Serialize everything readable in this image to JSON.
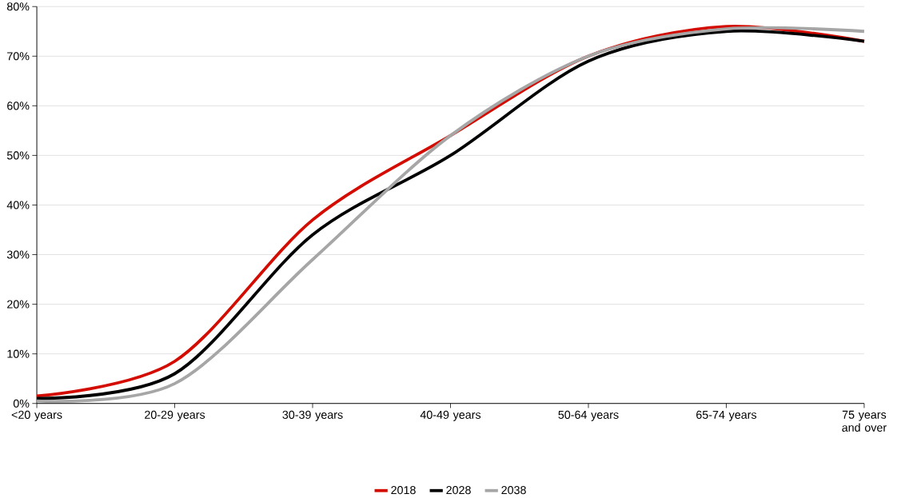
{
  "chart_data": {
    "type": "line",
    "categories": [
      "<20 years",
      "20-29 years",
      "30-39 years",
      "40-49 years",
      "50-64 years",
      "65-74 years",
      "75 years and over"
    ],
    "series": [
      {
        "name": "2018",
        "color": "#d40c00",
        "values": [
          1.5,
          8.5,
          37,
          54,
          70,
          76,
          73
        ]
      },
      {
        "name": "2028",
        "color": "#000000",
        "values": [
          1,
          6,
          34,
          50,
          69,
          75,
          73
        ]
      },
      {
        "name": "2038",
        "color": "#a6a6a6",
        "values": [
          0.5,
          4,
          29,
          54,
          70,
          75.5,
          75
        ]
      }
    ],
    "ylim": [
      0,
      80
    ],
    "yticks": [
      {
        "value": 0,
        "label": "0%"
      },
      {
        "value": 10,
        "label": "10%"
      },
      {
        "value": 20,
        "label": "20%"
      },
      {
        "value": 30,
        "label": "30%"
      },
      {
        "value": 40,
        "label": "40%"
      },
      {
        "value": 50,
        "label": "50%"
      },
      {
        "value": 60,
        "label": "60%"
      },
      {
        "value": 70,
        "label": "70%"
      },
      {
        "value": 80,
        "label": "80%"
      }
    ],
    "grid": "y",
    "legend": "bottom",
    "marker": "none",
    "line_style": "solid"
  }
}
